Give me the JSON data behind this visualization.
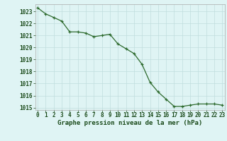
{
  "x": [
    0,
    1,
    2,
    3,
    4,
    5,
    6,
    7,
    8,
    9,
    10,
    11,
    12,
    13,
    14,
    15,
    16,
    17,
    18,
    19,
    20,
    21,
    22,
    23
  ],
  "y": [
    1023.3,
    1022.8,
    1022.5,
    1022.2,
    1021.3,
    1021.3,
    1021.2,
    1020.9,
    1021.0,
    1021.1,
    1020.3,
    1019.9,
    1019.5,
    1018.6,
    1017.1,
    1016.3,
    1015.7,
    1015.1,
    1015.1,
    1015.2,
    1015.3,
    1015.3,
    1015.3,
    1015.2
  ],
  "ylim": [
    1014.8,
    1023.6
  ],
  "yticks": [
    1015,
    1016,
    1017,
    1018,
    1019,
    1020,
    1021,
    1022,
    1023
  ],
  "xticks": [
    0,
    1,
    2,
    3,
    4,
    5,
    6,
    7,
    8,
    9,
    10,
    11,
    12,
    13,
    14,
    15,
    16,
    17,
    18,
    19,
    20,
    21,
    22,
    23
  ],
  "line_color": "#2d6a2d",
  "marker_color": "#2d6a2d",
  "bg_plot": "#dff4f4",
  "bg_fig": "#dff4f4",
  "grid_color": "#c0dede",
  "xlabel": "Graphe pression niveau de la mer (hPa)",
  "xlabel_color": "#1a4a1a",
  "tick_color": "#1a4a1a",
  "xlabel_fontsize": 6.5,
  "tick_fontsize": 5.5
}
